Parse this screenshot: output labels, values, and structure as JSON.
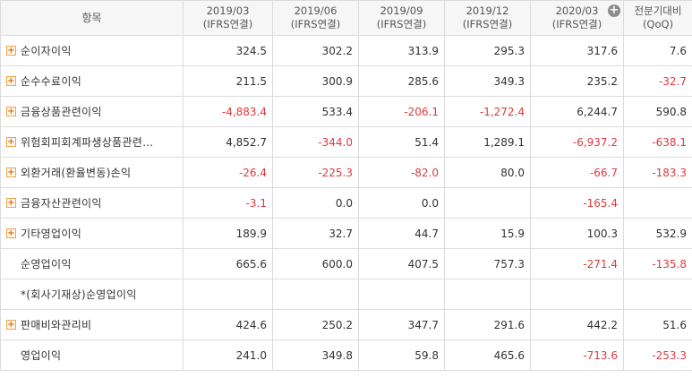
{
  "header": {
    "item": "항목",
    "periods": [
      {
        "date": "2019/03",
        "basis": "(IFRS연결)"
      },
      {
        "date": "2019/06",
        "basis": "(IFRS연결)"
      },
      {
        "date": "2019/09",
        "basis": "(IFRS연결)"
      },
      {
        "date": "2019/12",
        "basis": "(IFRS연결)"
      },
      {
        "date": "2020/03",
        "basis": "(IFRS연결)"
      }
    ],
    "expand_icon": "+",
    "qoq_line1": "전분기대비",
    "qoq_line2": "(QoQ)"
  },
  "rows": [
    {
      "name": "순이자이익",
      "expandable": true,
      "values": [
        "324.5",
        "302.2",
        "313.9",
        "295.3",
        "317.6",
        "7.6"
      ]
    },
    {
      "name": "순수수료이익",
      "expandable": true,
      "values": [
        "211.5",
        "300.9",
        "285.6",
        "349.3",
        "235.2",
        "-32.7"
      ]
    },
    {
      "name": "금융상품관련이익",
      "expandable": true,
      "values": [
        "-4,883.4",
        "533.4",
        "-206.1",
        "-1,272.4",
        "6,244.7",
        "590.8"
      ]
    },
    {
      "name": "위험회피회계파생상품관련…",
      "expandable": true,
      "values": [
        "4,852.7",
        "-344.0",
        "51.4",
        "1,289.1",
        "-6,937.2",
        "-638.1"
      ]
    },
    {
      "name": "외환거래(환율변동)손익",
      "expandable": true,
      "values": [
        "-26.4",
        "-225.3",
        "-82.0",
        "80.0",
        "-66.7",
        "-183.3"
      ]
    },
    {
      "name": "금융자산관련이익",
      "expandable": true,
      "values": [
        "-3.1",
        "0.0",
        "0.0",
        "",
        "-165.4",
        ""
      ]
    },
    {
      "name": "기타영업이익",
      "expandable": true,
      "values": [
        "189.9",
        "32.7",
        "44.7",
        "15.9",
        "100.3",
        "532.9"
      ]
    },
    {
      "name": "순영업이익",
      "expandable": false,
      "values": [
        "665.6",
        "600.0",
        "407.5",
        "757.3",
        "-271.4",
        "-135.8"
      ]
    },
    {
      "name": "*(회사기재상)순영업이익",
      "expandable": false,
      "values": [
        "",
        "",
        "",
        "",
        "",
        ""
      ]
    },
    {
      "name": "판매비와관리비",
      "expandable": true,
      "values": [
        "424.6",
        "250.2",
        "347.7",
        "291.6",
        "442.2",
        "51.6"
      ]
    },
    {
      "name": "영업이익",
      "expandable": false,
      "values": [
        "241.0",
        "349.8",
        "59.8",
        "465.6",
        "-713.6",
        "-253.3"
      ]
    }
  ],
  "colors": {
    "negative": "#e0393e",
    "expander_border": "#e8a64a",
    "header_bg": "#f6f6f6"
  }
}
